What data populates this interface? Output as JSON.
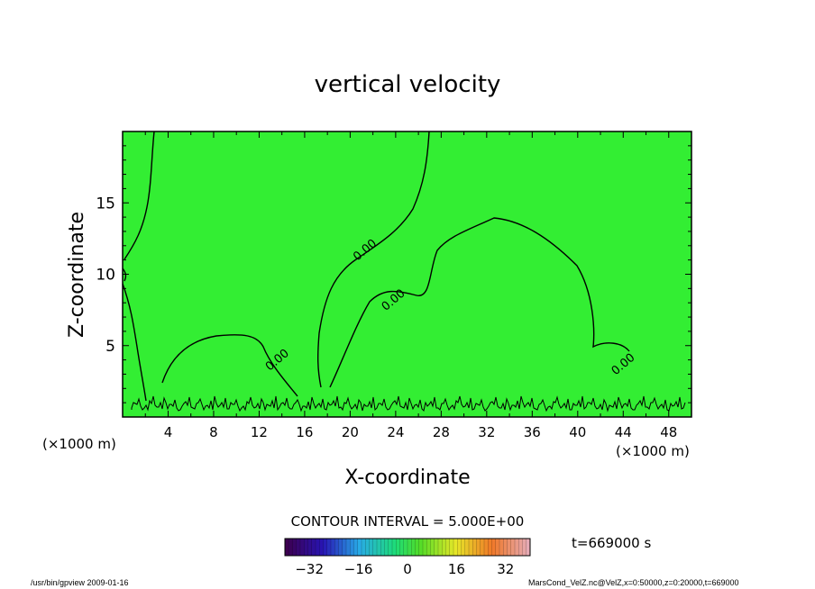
{
  "chart_data": {
    "type": "heatmap",
    "title": "vertical velocity",
    "xlabel": "X-coordinate",
    "ylabel": "Z-coordinate",
    "x_unit": "(×1000 m)",
    "xlim": [
      0,
      50
    ],
    "ylim": [
      0,
      20
    ],
    "x_ticks": [
      4,
      8,
      12,
      16,
      20,
      24,
      28,
      32,
      36,
      40,
      44,
      48
    ],
    "y_ticks": [
      5,
      10,
      15
    ],
    "field_value": 0,
    "field_color": "#33ee33",
    "contour_labels": [
      {
        "text": "0.00",
        "x": 21.5,
        "z": 11.5
      },
      {
        "text": "0.00",
        "x": 24.0,
        "z": 8.0
      },
      {
        "text": "0.00",
        "x": 13.8,
        "z": 3.8
      },
      {
        "text": "0.00",
        "x": 44.2,
        "z": 3.5
      }
    ],
    "contour_interval_text": "CONTOUR INTERVAL = 5.000E+00",
    "time_text": "t=669000 s",
    "colorbar": {
      "min": -40,
      "max": 40,
      "ticks": [
        -32,
        -16,
        0,
        16,
        32
      ]
    }
  },
  "footer": {
    "left": "/usr/bin/gpview   2009-01-16",
    "right": "MarsCond_VelZ.nc@VelZ,x=0:50000,z=0:20000,t=669000"
  }
}
